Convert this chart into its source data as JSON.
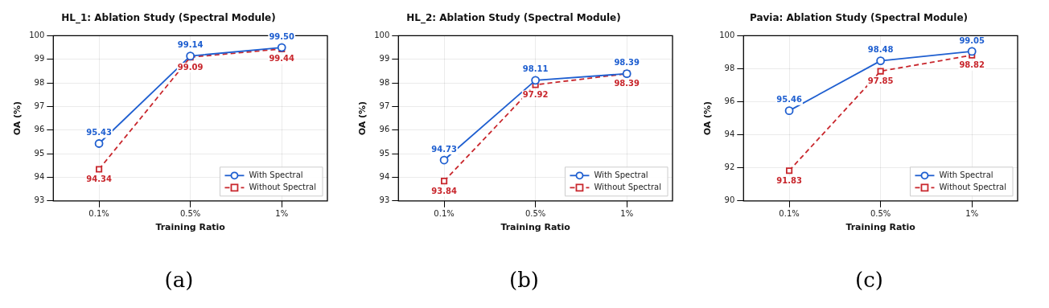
{
  "chart_data": [
    {
      "type": "line",
      "title": "HL_1: Ablation Study (Spectral Module)",
      "xlabel": "Training Ratio",
      "ylabel": "OA (%)",
      "categories": [
        "0.1%",
        "0.5%",
        "1%"
      ],
      "series": [
        {
          "name": "With Spectral",
          "color": "#1f5fd0",
          "values": [
            95.43,
            99.14,
            99.5
          ],
          "value_labels": [
            "95.43",
            "99.14",
            "99.50"
          ],
          "marker": "circle",
          "line_style": "solid"
        },
        {
          "name": "Without Spectral",
          "color": "#c8262c",
          "values": [
            94.34,
            99.09,
            99.44
          ],
          "value_labels": [
            "94.34",
            "99.09",
            "99.44"
          ],
          "marker": "square",
          "line_style": "dashed"
        }
      ],
      "ylim": [
        93,
        100
      ],
      "yticks": [
        93,
        94,
        95,
        96,
        97,
        98,
        99,
        100
      ],
      "grid": true,
      "legend": "bottom right",
      "annotations": [
        "(a)"
      ]
    },
    {
      "type": "line",
      "title": "HL_2: Ablation Study (Spectral Module)",
      "xlabel": "Training Ratio",
      "ylabel": "OA (%)",
      "categories": [
        "0.1%",
        "0.5%",
        "1%"
      ],
      "series": [
        {
          "name": "With Spectral",
          "color": "#1f5fd0",
          "values": [
            94.73,
            98.11,
            98.39
          ],
          "value_labels": [
            "94.73",
            "98.11",
            "98.39"
          ],
          "marker": "circle",
          "line_style": "solid"
        },
        {
          "name": "Without Spectral",
          "color": "#c8262c",
          "values": [
            93.84,
            97.92,
            98.39
          ],
          "value_labels": [
            "93.84",
            "97.92",
            "98.39"
          ],
          "marker": "square",
          "line_style": "dashed"
        }
      ],
      "ylim": [
        93,
        100
      ],
      "yticks": [
        93,
        94,
        95,
        96,
        97,
        98,
        99,
        100
      ],
      "grid": true,
      "legend": "bottom right",
      "annotations": [
        "(b)"
      ]
    },
    {
      "type": "line",
      "title": "Pavia: Ablation Study (Spectral Module)",
      "xlabel": "Training Ratio",
      "ylabel": "OA (%)",
      "categories": [
        "0.1%",
        "0.5%",
        "1%"
      ],
      "series": [
        {
          "name": "With Spectral",
          "color": "#1f5fd0",
          "values": [
            95.46,
            98.48,
            99.05
          ],
          "value_labels": [
            "95.46",
            "98.48",
            "99.05"
          ],
          "marker": "circle",
          "line_style": "solid"
        },
        {
          "name": "Without Spectral",
          "color": "#c8262c",
          "values": [
            91.83,
            97.85,
            98.82
          ],
          "value_labels": [
            "91.83",
            "97.85",
            "98.82"
          ],
          "marker": "square",
          "line_style": "dashed"
        }
      ],
      "ylim": [
        90,
        100
      ],
      "yticks": [
        90,
        92,
        94,
        96,
        98,
        100
      ],
      "grid": true,
      "legend": "bottom right",
      "annotations": [
        "(c)"
      ]
    }
  ]
}
